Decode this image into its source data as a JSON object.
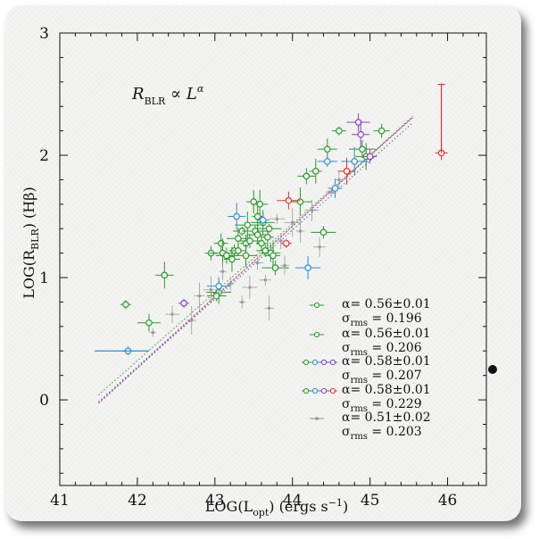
{
  "chart_data": {
    "type": "scatter",
    "title": "",
    "xlabel": "LOG(L_opt) (ergs s⁻¹)",
    "ylabel": "LOG(R_BLR) (Hβ)",
    "xlim": [
      41,
      46.5
    ],
    "ylim": [
      -0.7,
      3
    ],
    "xticks": [
      "41",
      "42",
      "43",
      "44",
      "45",
      "46"
    ],
    "yticks": [
      "0",
      "1",
      "2",
      "3"
    ],
    "annotation": "R_BLR ∝ L^α",
    "fits": [
      {
        "alpha": "α=  0.56±0.01",
        "sigma": "σrms  =  0.196",
        "color": "#2a9a2a",
        "marker": "circle",
        "slope": 0.56,
        "intercept": -23.2
      },
      {
        "alpha": "α=  0.56±0.01",
        "sigma": "σrms  =  0.206",
        "color": "#2a9a2a",
        "marker": "circle-open",
        "slope": 0.56,
        "intercept": -23.2
      },
      {
        "alpha": "α=  0.58±0.01",
        "sigma": "σrms  =  0.207",
        "color": "#7a3ec9",
        "marker": "multi",
        "slope": 0.58,
        "intercept": -24.08
      },
      {
        "alpha": "α=  0.58±0.01",
        "sigma": "σrms  =  0.229",
        "color": "#e23030",
        "marker": "multi",
        "slope": 0.58,
        "intercept": -24.1
      },
      {
        "alpha": "α=  0.51±0.02",
        "sigma": "σrms  =  0.203",
        "color": "#8c8c8c",
        "marker": "gray",
        "slope": 0.51,
        "intercept": -21.0
      }
    ],
    "series": [
      {
        "name": "green",
        "color": "#2a9a2a",
        "points": [
          [
            41.85,
            0.78
          ],
          [
            42.15,
            0.63
          ],
          [
            42.35,
            1.02
          ],
          [
            42.95,
            1.2
          ],
          [
            43.05,
            0.88
          ],
          [
            43.02,
            0.85
          ],
          [
            43.08,
            1.28
          ],
          [
            43.1,
            1.2
          ],
          [
            43.15,
            1.18
          ],
          [
            43.22,
            1.15
          ],
          [
            43.25,
            1.22
          ],
          [
            43.3,
            1.32
          ],
          [
            43.35,
            1.38
          ],
          [
            43.4,
            1.28
          ],
          [
            43.42,
            1.43
          ],
          [
            43.45,
            1.3
          ],
          [
            43.5,
            1.62
          ],
          [
            43.52,
            1.38
          ],
          [
            43.55,
            1.35
          ],
          [
            43.58,
            1.6
          ],
          [
            43.6,
            1.28
          ],
          [
            43.62,
            1.45
          ],
          [
            43.65,
            1.22
          ],
          [
            43.68,
            1.33
          ],
          [
            43.7,
            1.4
          ],
          [
            43.72,
            1.2
          ],
          [
            43.75,
            1.18
          ],
          [
            43.78,
            1.08
          ],
          [
            43.4,
            1.18
          ],
          [
            43.3,
            1.22
          ],
          [
            43.55,
            1.5
          ],
          [
            44.1,
            1.62
          ],
          [
            44.18,
            1.83
          ],
          [
            44.3,
            1.87
          ],
          [
            44.4,
            1.37
          ],
          [
            44.45,
            2.05
          ],
          [
            44.6,
            2.2
          ],
          [
            44.9,
            2.05
          ],
          [
            44.95,
            1.99
          ],
          [
            45.15,
            2.2
          ]
        ]
      },
      {
        "name": "blue",
        "color": "#2b8fd6",
        "points": [
          [
            41.88,
            0.4
          ],
          [
            43.05,
            0.93
          ],
          [
            43.28,
            1.5
          ],
          [
            43.62,
            1.47
          ],
          [
            44.2,
            1.08
          ],
          [
            44.45,
            1.95
          ],
          [
            44.55,
            1.73
          ],
          [
            44.8,
            1.95
          ]
        ]
      },
      {
        "name": "purple",
        "color": "#8a3ec9",
        "points": [
          [
            42.6,
            0.79
          ],
          [
            44.85,
            2.27
          ],
          [
            44.88,
            2.17
          ],
          [
            45.0,
            1.99
          ]
        ]
      },
      {
        "name": "red",
        "color": "#e23030",
        "points": [
          [
            43.92,
            1.28
          ],
          [
            43.95,
            1.63
          ],
          [
            44.7,
            1.87
          ],
          [
            45.92,
            2.02
          ]
        ]
      },
      {
        "name": "gray",
        "color": "#9a9a9a",
        "points": [
          [
            42.2,
            0.55
          ],
          [
            42.45,
            0.7
          ],
          [
            42.8,
            0.85
          ],
          [
            43.2,
            0.95
          ],
          [
            43.45,
            0.92
          ],
          [
            43.65,
            0.98
          ],
          [
            43.9,
            1.1
          ],
          [
            44.0,
            1.45
          ],
          [
            43.85,
            1.3
          ],
          [
            43.7,
            0.75
          ],
          [
            43.35,
            0.8
          ],
          [
            44.25,
            1.55
          ],
          [
            44.5,
            1.7
          ],
          [
            43.1,
            1.05
          ],
          [
            42.95,
            0.9
          ],
          [
            43.55,
            1.12
          ],
          [
            44.1,
            1.38
          ],
          [
            43.8,
            1.48
          ],
          [
            44.35,
            1.25
          ],
          [
            42.7,
            0.65
          ],
          [
            44.6,
            1.8
          ]
        ]
      }
    ]
  }
}
